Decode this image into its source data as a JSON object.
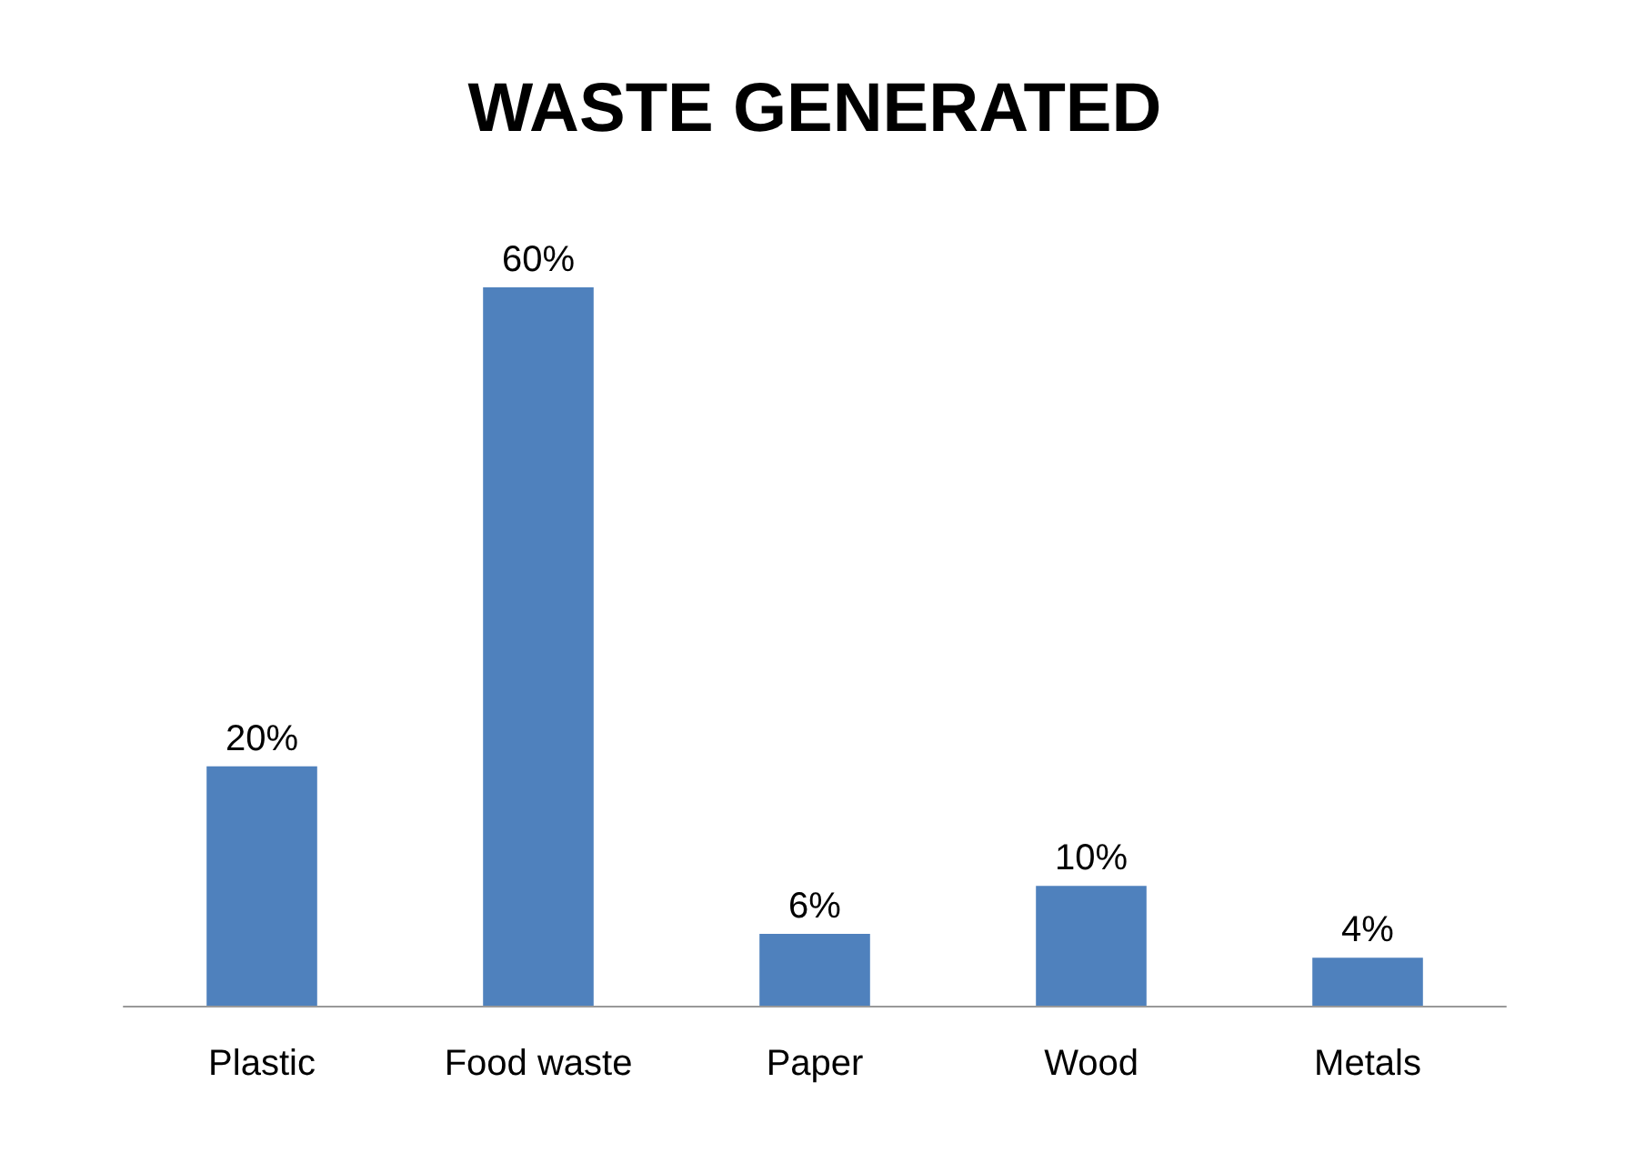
{
  "chart_data": {
    "type": "bar",
    "title": "WASTE GENERATED",
    "categories": [
      "Plastic",
      "Food waste",
      "Paper",
      "Wood",
      "Metals"
    ],
    "values": [
      20,
      60,
      6,
      10,
      4
    ],
    "value_labels": [
      "20%",
      "60%",
      "6%",
      "10%",
      "4%"
    ],
    "color": "#4f81bd",
    "tick_labels": "x"
  }
}
